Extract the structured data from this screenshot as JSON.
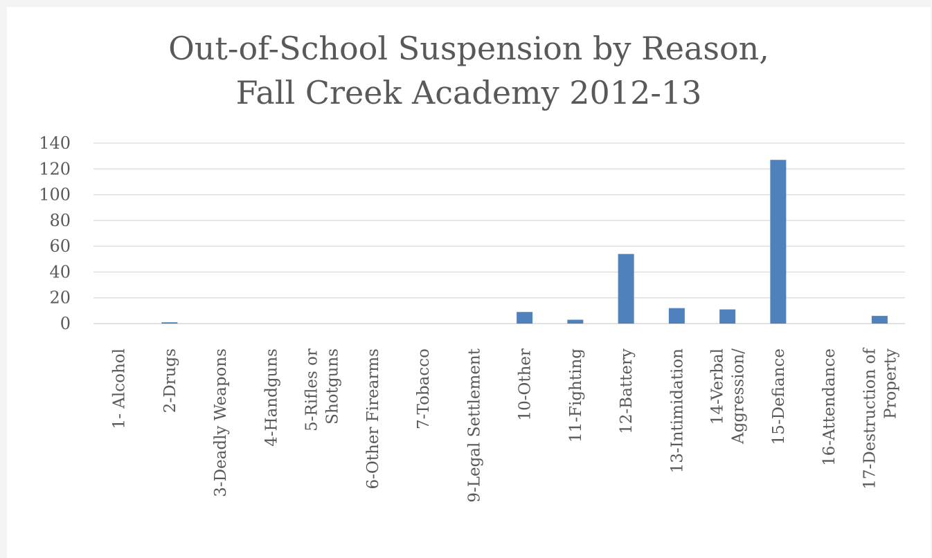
{
  "chart_data": {
    "type": "bar",
    "title_lines": [
      "Out-of-School Suspension by Reason,",
      "Fall Creek Academy 2012-13"
    ],
    "categories": [
      [
        "1- Alcohol"
      ],
      [
        "2-Drugs"
      ],
      [
        "3-Deadly Weapons"
      ],
      [
        "4-Handguns"
      ],
      [
        "5-Rifles or",
        "Shotguns"
      ],
      [
        "6-Other Firearms"
      ],
      [
        "7-Tobacco"
      ],
      [
        "9-Legal Settlement"
      ],
      [
        "10-Other"
      ],
      [
        "11-Fighting"
      ],
      [
        "12-Battery"
      ],
      [
        "13-Intimidation"
      ],
      [
        "14-Verbal",
        "Aggression/"
      ],
      [
        "15-Defiance"
      ],
      [
        "16-Attendance"
      ],
      [
        "17-Destruction of",
        "Property"
      ]
    ],
    "values": [
      0,
      1,
      0,
      0,
      0,
      0,
      0,
      0,
      9,
      3,
      54,
      12,
      11,
      127,
      0,
      6
    ],
    "ylim": [
      0,
      140
    ],
    "yticks": [
      0,
      20,
      40,
      60,
      80,
      100,
      120,
      140
    ],
    "grid": true,
    "bar_color": "#4f81bd",
    "xlabel": "",
    "ylabel": ""
  }
}
